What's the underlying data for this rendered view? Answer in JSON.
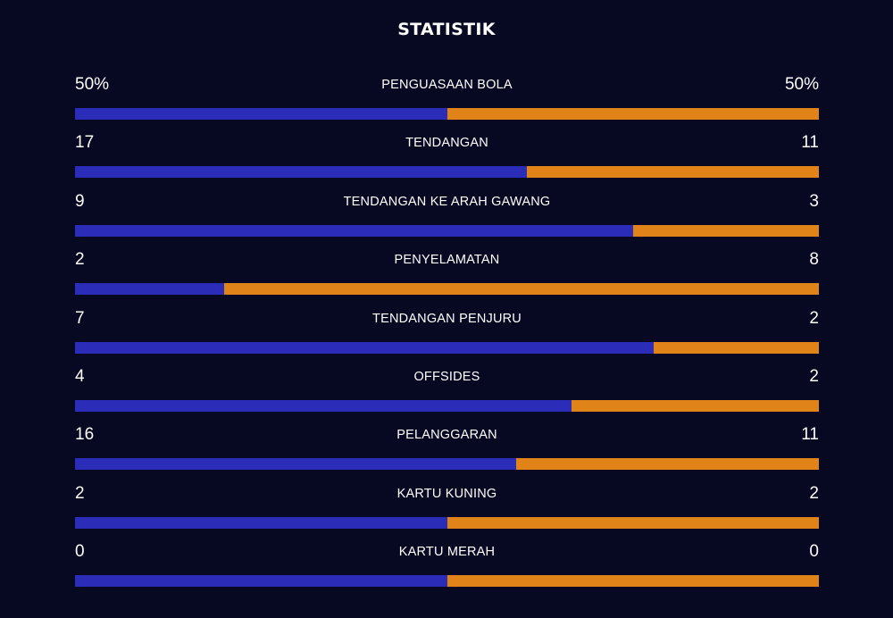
{
  "title": "STATISTIK",
  "colors": {
    "background": "#070822",
    "home": "#2b2cb8",
    "away": "#e0841a",
    "text": "#ffffff"
  },
  "stats": [
    {
      "label": "PENGUASAAN BOLA",
      "home": "50%",
      "away": "50%",
      "home_share": 0.5
    },
    {
      "label": "TENDANGAN",
      "home": "17",
      "away": "11",
      "home_share": 0.607
    },
    {
      "label": "TENDANGAN KE ARAH GAWANG",
      "home": "9",
      "away": "3",
      "home_share": 0.75
    },
    {
      "label": "PENYELAMATAN",
      "home": "2",
      "away": "8",
      "home_share": 0.2
    },
    {
      "label": "TENDANGAN PENJURU",
      "home": "7",
      "away": "2",
      "home_share": 0.778
    },
    {
      "label": "OFFSIDES",
      "home": "4",
      "away": "2",
      "home_share": 0.667
    },
    {
      "label": "PELANGGARAN",
      "home": "16",
      "away": "11",
      "home_share": 0.593
    },
    {
      "label": "KARTU KUNING",
      "home": "2",
      "away": "2",
      "home_share": 0.5
    },
    {
      "label": "KARTU MERAH",
      "home": "0",
      "away": "0",
      "home_share": 0.5
    }
  ]
}
